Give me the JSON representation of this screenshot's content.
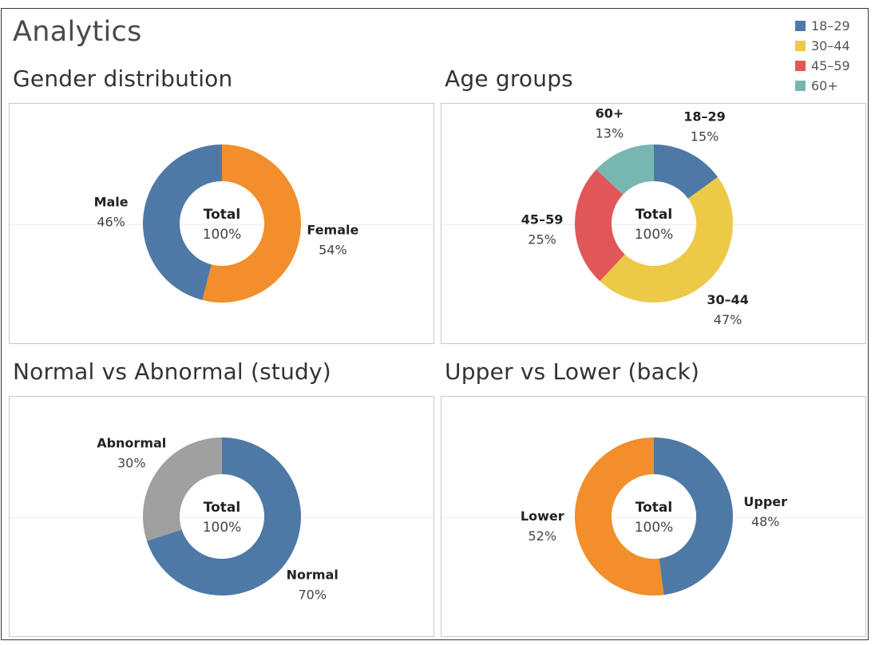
{
  "page": {
    "title": "Analytics"
  },
  "legend": [
    {
      "label": "18–29",
      "color": "#4e79a7"
    },
    {
      "label": "30–44",
      "color": "#edc948"
    },
    {
      "label": "45–59",
      "color": "#e15759"
    },
    {
      "label": "60+",
      "color": "#76b7b2"
    }
  ],
  "chart_data": [
    {
      "type": "pie",
      "title": "Gender distribution",
      "center": {
        "label": "Total",
        "value": "100%"
      },
      "slices": [
        {
          "name": "Female",
          "value": 54,
          "value_label": "54%",
          "color": "#f28e2b"
        },
        {
          "name": "Male",
          "value": 46,
          "value_label": "46%",
          "color": "#4e79a7"
        }
      ]
    },
    {
      "type": "pie",
      "title": "Age groups",
      "center": {
        "label": "Total",
        "value": "100%"
      },
      "slices": [
        {
          "name": "18–29",
          "value": 15,
          "value_label": "15%",
          "color": "#4e79a7"
        },
        {
          "name": "30–44",
          "value": 47,
          "value_label": "47%",
          "color": "#edc948"
        },
        {
          "name": "45–59",
          "value": 25,
          "value_label": "25%",
          "color": "#e15759"
        },
        {
          "name": "60+",
          "value": 13,
          "value_label": "13%",
          "color": "#76b7b2"
        }
      ]
    },
    {
      "type": "pie",
      "title": "Normal vs Abnormal (study)",
      "center": {
        "label": "Total",
        "value": "100%"
      },
      "slices": [
        {
          "name": "Normal",
          "value": 70,
          "value_label": "70%",
          "color": "#4e79a7"
        },
        {
          "name": "Abnormal",
          "value": 30,
          "value_label": "30%",
          "color": "#a0a0a0"
        }
      ]
    },
    {
      "type": "pie",
      "title": "Upper vs Lower (back)",
      "center": {
        "label": "Total",
        "value": "100%"
      },
      "slices": [
        {
          "name": "Upper",
          "value": 48,
          "value_label": "48%",
          "color": "#4e79a7"
        },
        {
          "name": "Lower",
          "value": 52,
          "value_label": "52%",
          "color": "#f28e2b"
        }
      ]
    }
  ]
}
